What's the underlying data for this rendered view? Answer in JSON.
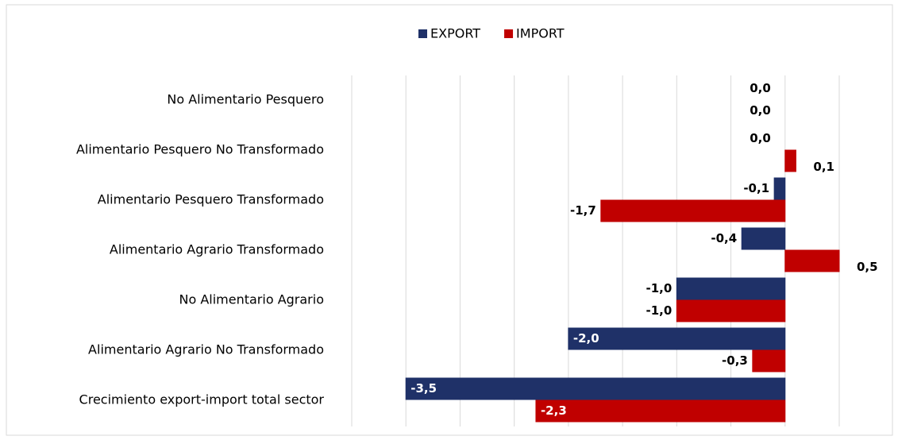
{
  "chart_data": {
    "type": "barh",
    "categories": [
      "No Alimentario Pesquero",
      "Alimentario Pesquero No Transformado",
      "Alimentario Pesquero Transformado",
      "Alimentario Agrario Transformado",
      "No Alimentario Agrario",
      "Alimentario Agrario No Transformado",
      "Crecimiento export-import total sector"
    ],
    "series": [
      {
        "name": "EXPORT",
        "color": "#1f3168",
        "values": [
          0.0,
          0.0,
          -0.1,
          -0.4,
          -1.0,
          -2.0,
          -3.5
        ],
        "value_labels": [
          "0,0",
          "0,0",
          "-0,1",
          "-0,4",
          "-1,0",
          "-2,0",
          "-3,5"
        ]
      },
      {
        "name": "IMPORT",
        "color": "#c00000",
        "values": [
          0.0,
          0.1,
          -1.7,
          0.5,
          -1.0,
          -0.3,
          -2.3
        ],
        "value_labels": [
          "0,0",
          "0,1",
          "-1,7",
          "0,5",
          "-1,0",
          "-0,3",
          "-2,3"
        ]
      }
    ],
    "xlim": [
      -4.0,
      0.5
    ],
    "xticks": [
      -4.0,
      -3.5,
      -3.0,
      -2.5,
      -2.0,
      -1.5,
      -1.0,
      -0.5,
      0.0,
      0.5
    ],
    "grid": true,
    "legend": "top"
  }
}
